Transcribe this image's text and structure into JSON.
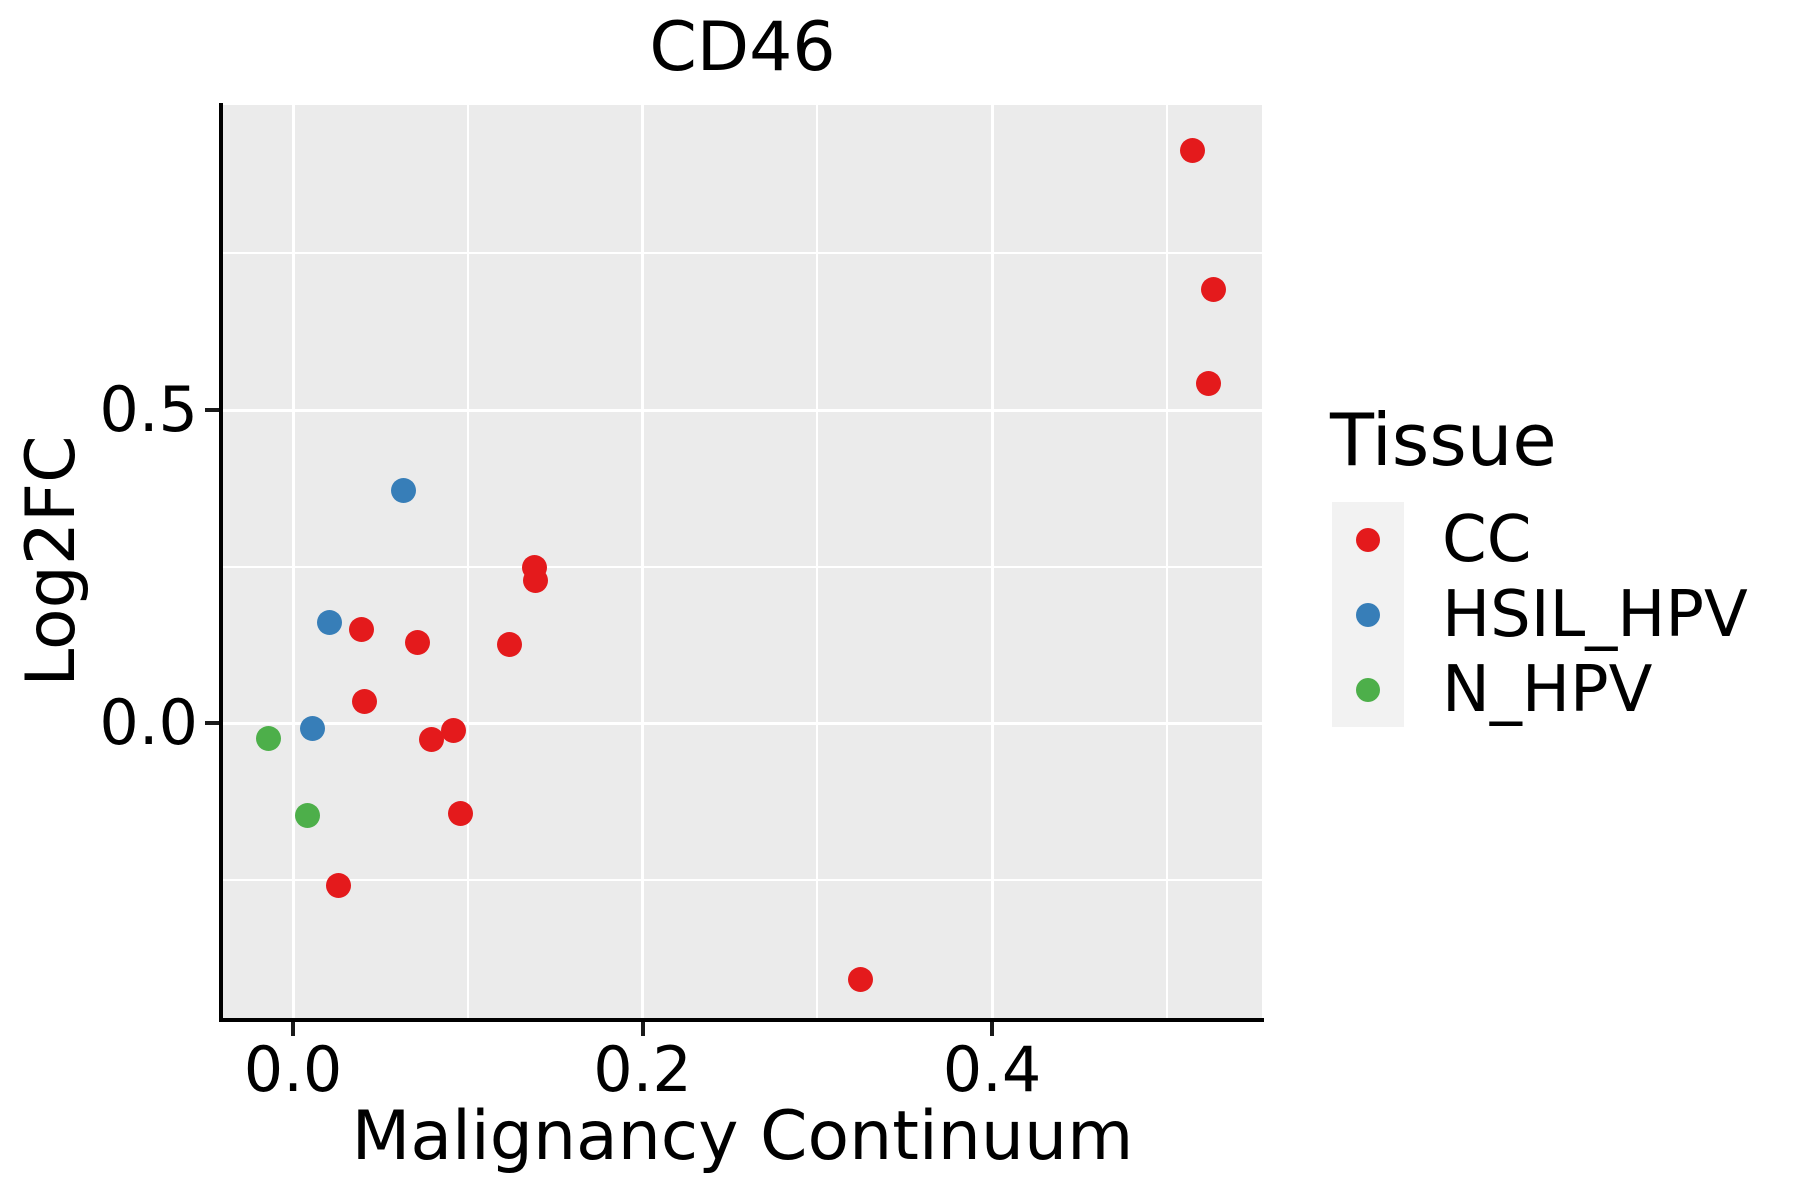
{
  "title": "CD46",
  "axes": {
    "x": {
      "label": "Malignancy Continuum",
      "ticks": [
        {
          "value": 0.0,
          "label": "0.0"
        },
        {
          "value": 0.2,
          "label": "0.2"
        },
        {
          "value": 0.4,
          "label": "0.4"
        }
      ],
      "minor": [
        0.1,
        0.3,
        0.5
      ],
      "range": [
        -0.0401,
        0.5545
      ]
    },
    "y": {
      "label": "Log2FC",
      "ticks": [
        {
          "value": 0.0,
          "label": "0.0"
        },
        {
          "value": 0.5,
          "label": "0.5"
        }
      ],
      "minor": [
        -0.25,
        0.25,
        0.75
      ],
      "range": [
        -0.4744,
        0.9872
      ]
    }
  },
  "legend": {
    "title": "Tissue",
    "entries": [
      {
        "label": "CC",
        "color": "#E41A1C"
      },
      {
        "label": "HSIL_HPV",
        "color": "#377EB8"
      },
      {
        "label": "N_HPV",
        "color": "#4DAF4A"
      }
    ]
  },
  "colors": {
    "panel_bg": "#EBEBEB",
    "grid": "#FFFFFF",
    "axis": "#000000",
    "legend_key_bg": "#F2F2F2"
  },
  "chart_data": {
    "type": "scatter",
    "title": "CD46",
    "xlabel": "Malignancy Continuum",
    "ylabel": "Log2FC",
    "xlim": [
      -0.0401,
      0.5545
    ],
    "ylim": [
      -0.4744,
      0.9872
    ],
    "x_major_ticks": [
      0.0,
      0.2,
      0.4
    ],
    "y_major_ticks": [
      0.0,
      0.5
    ],
    "grid": "on",
    "legend_position": "right",
    "series": [
      {
        "name": "CC",
        "color": "#E41A1C",
        "points": [
          [
            0.515,
            0.915
          ],
          [
            0.527,
            0.692
          ],
          [
            0.524,
            0.542
          ],
          [
            0.138,
            0.249
          ],
          [
            0.139,
            0.227
          ],
          [
            0.039,
            0.15
          ],
          [
            0.071,
            0.129
          ],
          [
            0.124,
            0.125
          ],
          [
            0.041,
            0.034
          ],
          [
            0.092,
            -0.012
          ],
          [
            0.079,
            -0.027
          ],
          [
            0.096,
            -0.145
          ],
          [
            0.026,
            -0.26
          ],
          [
            0.325,
            -0.41
          ]
        ]
      },
      {
        "name": "HSIL_HPV",
        "color": "#377EB8",
        "points": [
          [
            0.063,
            0.372
          ],
          [
            0.021,
            0.161
          ],
          [
            0.011,
            -0.009
          ]
        ]
      },
      {
        "name": "N_HPV",
        "color": "#4DAF4A",
        "points": [
          [
            -0.014,
            -0.024
          ],
          [
            0.008,
            -0.147
          ]
        ]
      }
    ]
  }
}
